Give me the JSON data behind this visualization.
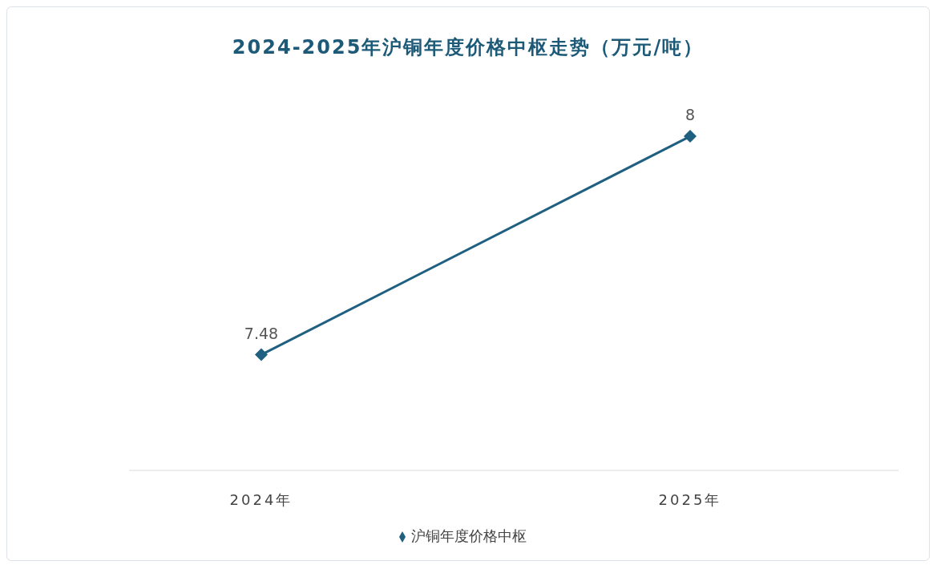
{
  "chart_data": {
    "type": "line",
    "title": "2024-2025年沪铜年度价格中枢走势（万元/吨）",
    "categories": [
      "2024年",
      "2025年"
    ],
    "series": [
      {
        "name": "沪铜年度价格中枢",
        "color": "#1f5f7f",
        "values": [
          7.48,
          8
        ]
      }
    ],
    "data_labels": true,
    "marker": "diamond",
    "legend": "bottom"
  }
}
